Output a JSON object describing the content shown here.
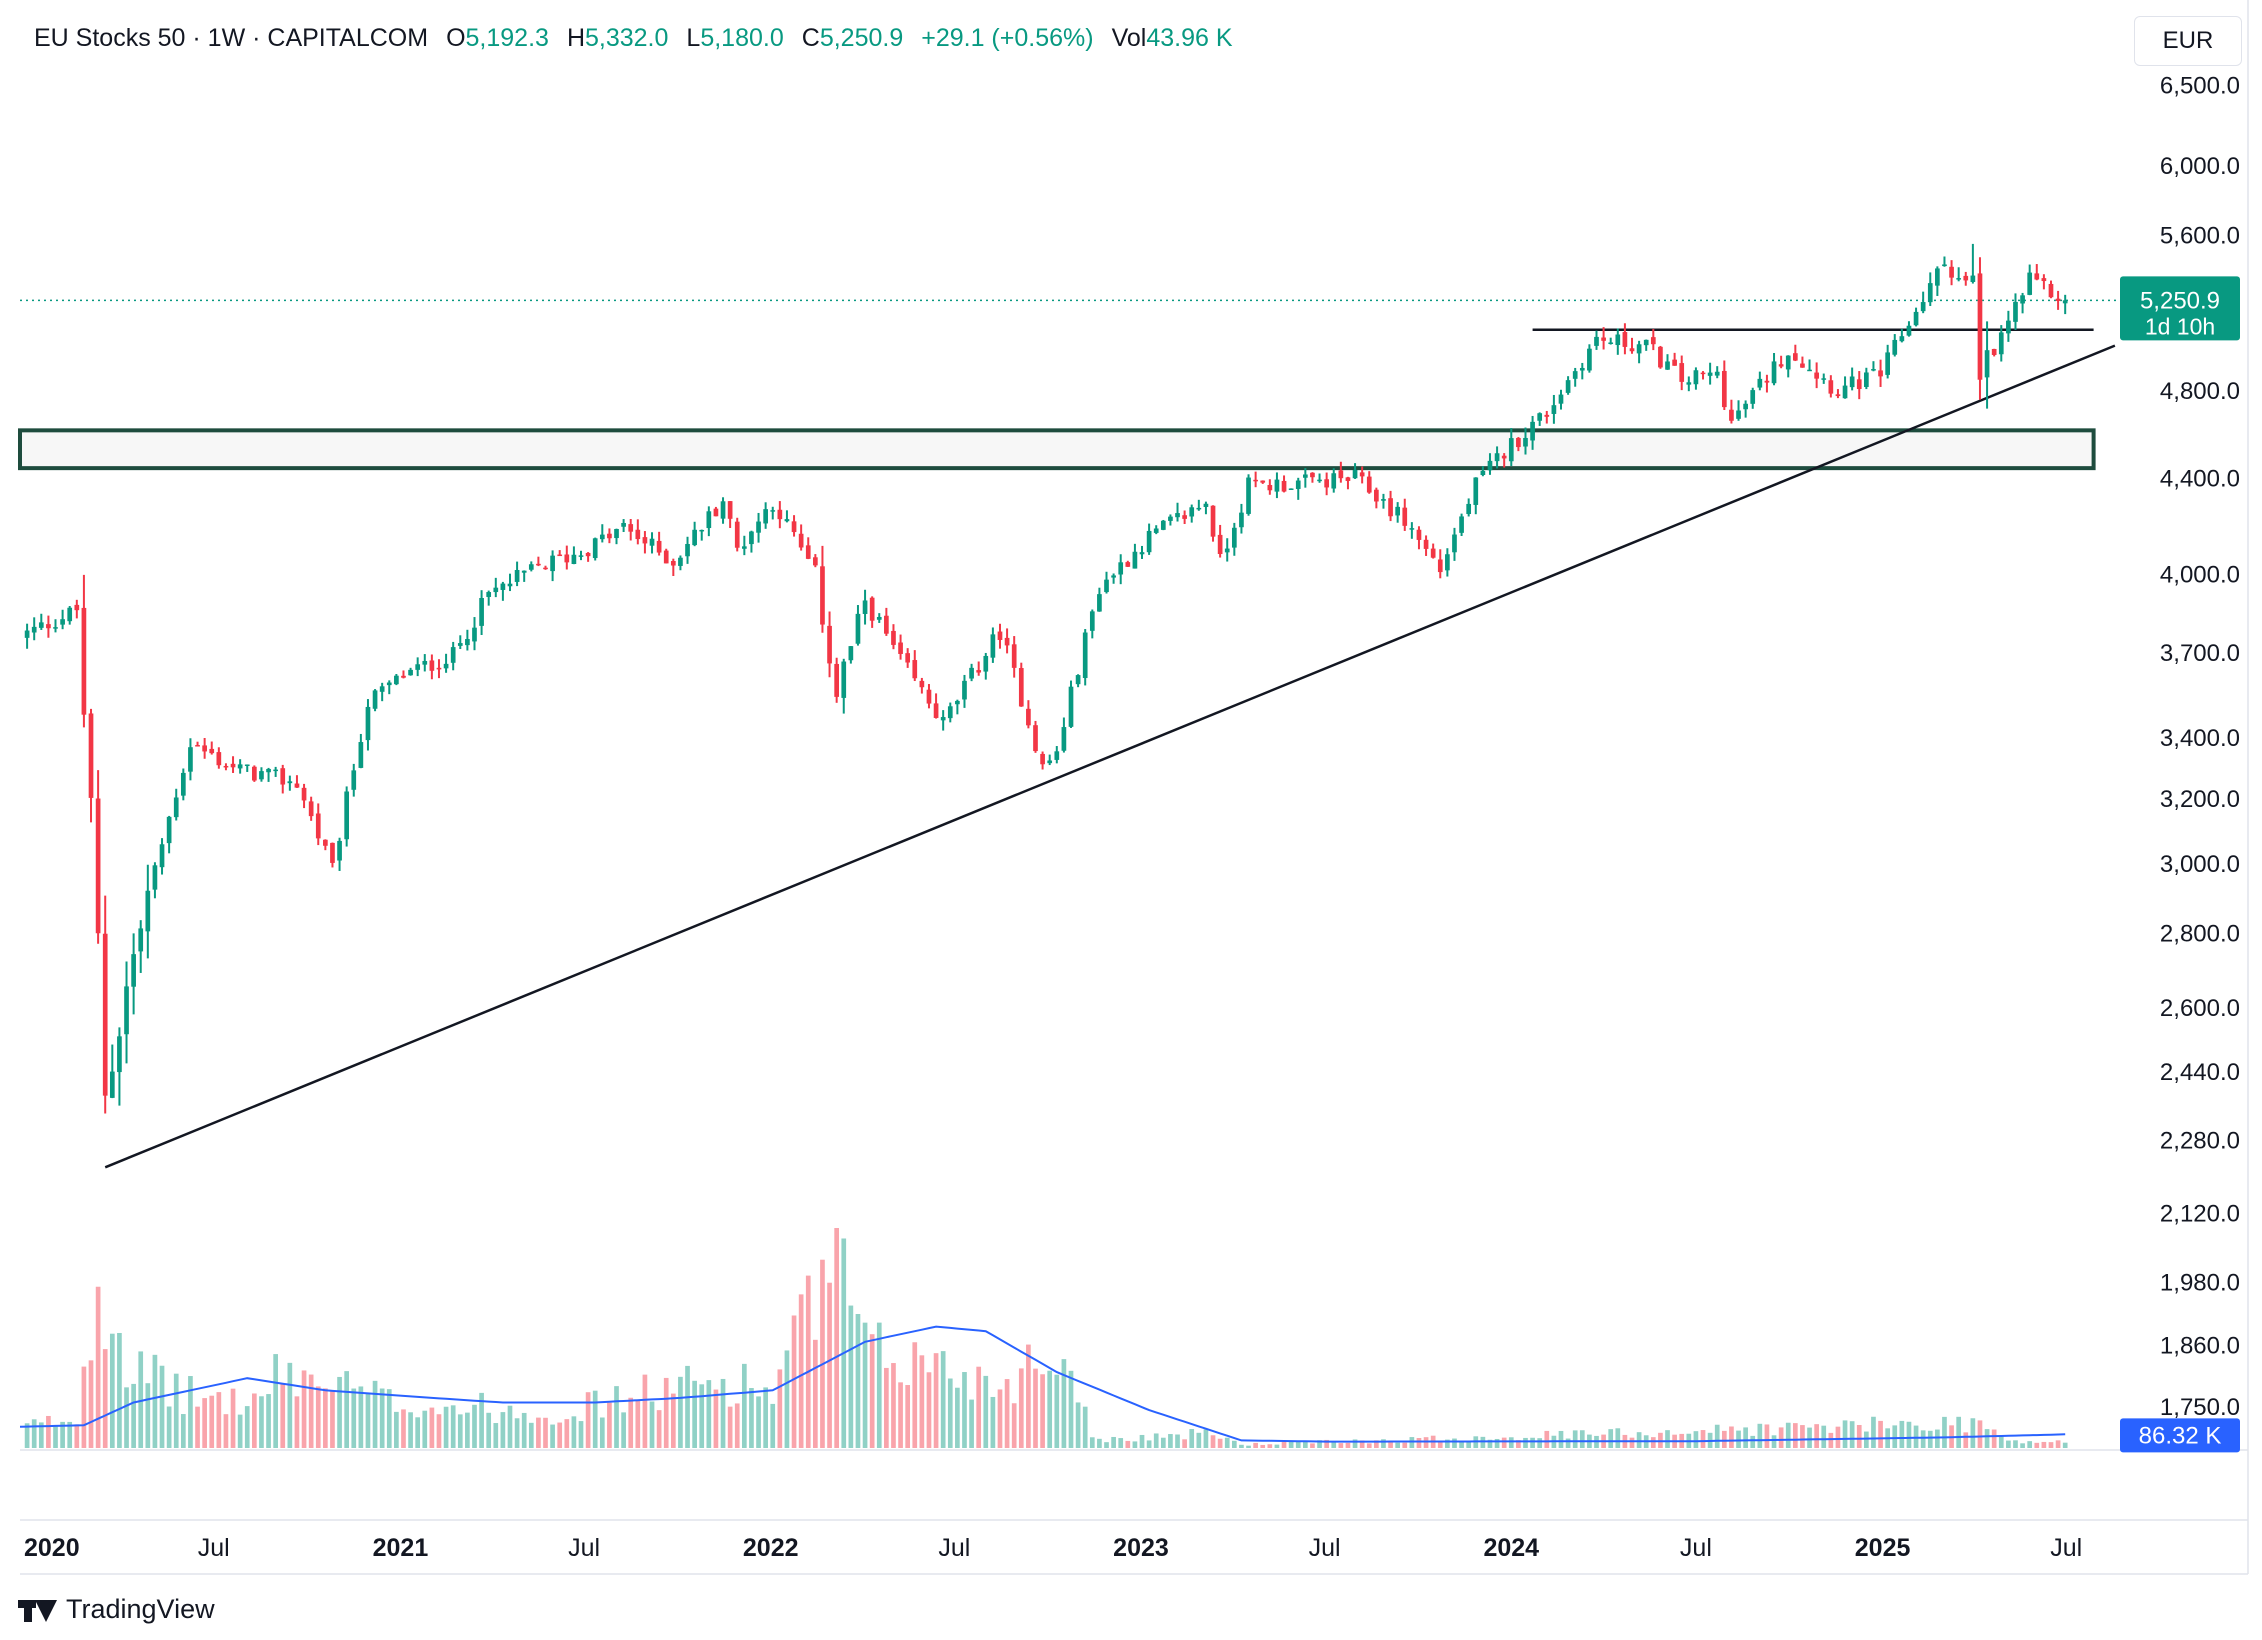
{
  "header": {
    "symbol": "EU Stocks 50 · 1W · CAPITALCOM",
    "o_label": "O",
    "o_value": "5,192.3",
    "h_label": "H",
    "h_value": "5,332.0",
    "l_label": "L",
    "l_value": "5,180.0",
    "c_label": "C",
    "c_value": "5,250.9",
    "change": "+29.1 (+0.56%)",
    "vol_label": "Vol",
    "vol_value": "43.96 K"
  },
  "currency": "EUR",
  "price_tag": {
    "price": "5,250.9",
    "countdown": "1d 10h"
  },
  "volume_tag": "86.32 K",
  "brand": "TradingView",
  "colors": {
    "up": "#089981",
    "down": "#f23645",
    "ma": "#2962ff",
    "zone": "#1e4c3e",
    "line": "#131722"
  },
  "chart_data": {
    "type": "candlestick",
    "scale": "log",
    "ylim": [
      1680,
      6800
    ],
    "y_ticks": [
      "6,500.0",
      "6,000.0",
      "5,600.0",
      "5,250.9",
      "4,800.0",
      "4,400.0",
      "4,000.0",
      "3,700.0",
      "3,400.0",
      "3,200.0",
      "3,000.0",
      "2,800.0",
      "2,600.0",
      "2,440.0",
      "2,280.0",
      "2,120.0",
      "1,980.0",
      "1,860.0",
      "1,750.0"
    ],
    "x_labels": [
      "2020",
      "Jul",
      "2021",
      "Jul",
      "2022",
      "Jul",
      "2023",
      "Jul",
      "2024",
      "Jul",
      "2025",
      "Jul"
    ],
    "x_label_dates": [
      "2020-01-01",
      "2020-07-01",
      "2021-01-01",
      "2021-07-01",
      "2022-01-01",
      "2022-07-01",
      "2023-01-01",
      "2023-07-01",
      "2024-01-01",
      "2024-07-01",
      "2025-01-01",
      "2025-07-01"
    ],
    "x_range": [
      "2019-12-23",
      "2025-08-25"
    ],
    "last_price": 5250.9,
    "zone": {
      "from": "2019-12-23",
      "to": "2025-07-28",
      "low": 4445,
      "high": 4615
    },
    "resistance": {
      "from": "2024-01-22",
      "to": "2025-07-28",
      "price": 5100
    },
    "trendline": {
      "from": [
        "2020-03-16",
        2220
      ],
      "to": [
        "2025-08-18",
        5020
      ]
    },
    "price_path": [
      [
        "2019-12-23",
        3760
      ],
      [
        "2020-02-17",
        3860
      ],
      [
        "2020-03-16",
        2400
      ],
      [
        "2020-04-27",
        2900
      ],
      [
        "2020-06-08",
        3380
      ],
      [
        "2020-07-20",
        3300
      ],
      [
        "2020-09-21",
        3250
      ],
      [
        "2020-10-26",
        2980
      ],
      [
        "2020-11-30",
        3520
      ],
      [
        "2021-01-04",
        3620
      ],
      [
        "2021-02-22",
        3690
      ],
      [
        "2021-03-29",
        3920
      ],
      [
        "2021-05-17",
        4030
      ],
      [
        "2021-06-28",
        4090
      ],
      [
        "2021-08-09",
        4190
      ],
      [
        "2021-09-27",
        4050
      ],
      [
        "2021-11-15",
        4310
      ],
      [
        "2021-11-29",
        4100
      ],
      [
        "2022-01-03",
        4300
      ],
      [
        "2022-02-14",
        4000
      ],
      [
        "2022-03-07",
        3550
      ],
      [
        "2022-04-04",
        3900
      ],
      [
        "2022-05-09",
        3670
      ],
      [
        "2022-06-20",
        3450
      ],
      [
        "2022-08-15",
        3780
      ],
      [
        "2022-09-26",
        3300
      ],
      [
        "2022-10-10",
        3350
      ],
      [
        "2022-11-21",
        3950
      ],
      [
        "2023-01-09",
        4150
      ],
      [
        "2023-03-06",
        4300
      ],
      [
        "2023-03-20",
        4050
      ],
      [
        "2023-04-17",
        4370
      ],
      [
        "2023-06-12",
        4380
      ],
      [
        "2023-07-31",
        4400
      ],
      [
        "2023-09-18",
        4220
      ],
      [
        "2023-10-23",
        4020
      ],
      [
        "2023-11-27",
        4370
      ],
      [
        "2023-12-25",
        4520
      ],
      [
        "2024-02-05",
        4700
      ],
      [
        "2024-03-25",
        5050
      ],
      [
        "2024-05-13",
        5020
      ],
      [
        "2024-06-17",
        4850
      ],
      [
        "2024-07-22",
        4880
      ],
      [
        "2024-08-05",
        4650
      ],
      [
        "2024-09-30",
        5000
      ],
      [
        "2024-11-18",
        4800
      ],
      [
        "2024-12-30",
        4880
      ],
      [
        "2025-02-03",
        5200
      ],
      [
        "2025-03-03",
        5450
      ],
      [
        "2025-03-31",
        5300
      ],
      [
        "2025-04-07",
        4800
      ],
      [
        "2025-05-05",
        5150
      ],
      [
        "2025-05-26",
        5350
      ],
      [
        "2025-06-30",
        5250
      ]
    ],
    "volume": {
      "unit": "K",
      "max": 1450,
      "profile": [
        [
          "2019-12-23",
          150
        ],
        [
          "2020-02-17",
          220
        ],
        [
          "2020-03-09",
          1300
        ],
        [
          "2020-04-13",
          560
        ],
        [
          "2020-06-08",
          380
        ],
        [
          "2020-08-10",
          330
        ],
        [
          "2020-09-07",
          560
        ],
        [
          "2020-12-28",
          330
        ],
        [
          "2021-06-07",
          260
        ],
        [
          "2021-09-27",
          440
        ],
        [
          "2021-11-29",
          490
        ],
        [
          "2022-01-03",
          410
        ],
        [
          "2022-02-14",
          1080
        ],
        [
          "2022-03-07",
          1400
        ],
        [
          "2022-04-04",
          690
        ],
        [
          "2022-06-06",
          620
        ],
        [
          "2022-08-15",
          460
        ],
        [
          "2022-10-03",
          700
        ],
        [
          "2022-11-07",
          460
        ],
        [
          "2022-11-14",
          60
        ],
        [
          "2023-03-13",
          110
        ],
        [
          "2023-04-10",
          25
        ],
        [
          "2025-04-07",
          190
        ],
        [
          "2025-05-05",
          45
        ],
        [
          "2025-07-21",
          45
        ]
      ],
      "ma_profile": [
        [
          "2019-12-23",
          140
        ],
        [
          "2020-02-24",
          150
        ],
        [
          "2020-04-13",
          300
        ],
        [
          "2020-06-08",
          380
        ],
        [
          "2020-08-03",
          460
        ],
        [
          "2020-10-19",
          380
        ],
        [
          "2021-02-01",
          330
        ],
        [
          "2021-04-12",
          300
        ],
        [
          "2021-07-12",
          300
        ],
        [
          "2021-10-04",
          330
        ],
        [
          "2022-01-03",
          380
        ],
        [
          "2022-04-04",
          700
        ],
        [
          "2022-06-13",
          800
        ],
        [
          "2022-08-01",
          770
        ],
        [
          "2022-10-10",
          500
        ],
        [
          "2023-01-09",
          250
        ],
        [
          "2023-04-10",
          50
        ],
        [
          "2023-07-03",
          42
        ],
        [
          "2024-07-01",
          45
        ],
        [
          "2025-03-03",
          70
        ],
        [
          "2025-06-30",
          90
        ]
      ]
    }
  }
}
